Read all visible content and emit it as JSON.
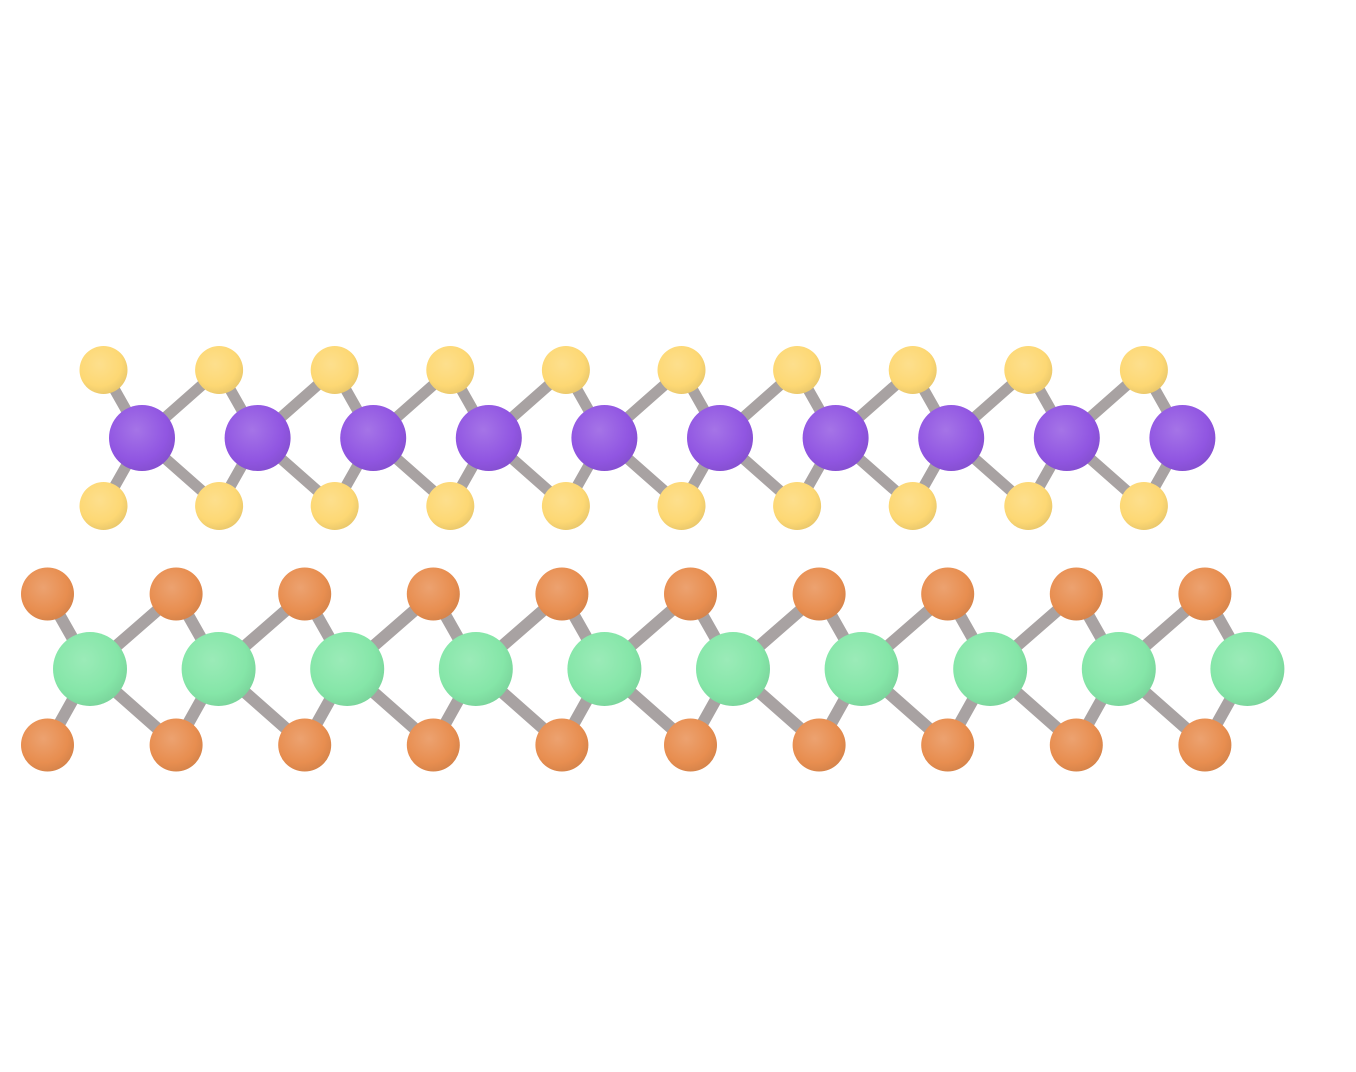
{
  "diagram": {
    "type": "ball-and-stick molecular structure",
    "background_color": "#ffffff",
    "bond_color": "#a8a2a2",
    "chains": [
      {
        "id": "chain-top",
        "metal_atom_color": "#9156e2",
        "chalcogen_atom_color": "#fdd874",
        "metal_atom_count": 10,
        "chalcogen_atom_count": 20
      },
      {
        "id": "chain-bottom",
        "metal_atom_color": "#85e6a8",
        "chalcogen_atom_color": "#e88e50",
        "metal_atom_count": 10,
        "chalcogen_atom_count": 20
      }
    ]
  }
}
